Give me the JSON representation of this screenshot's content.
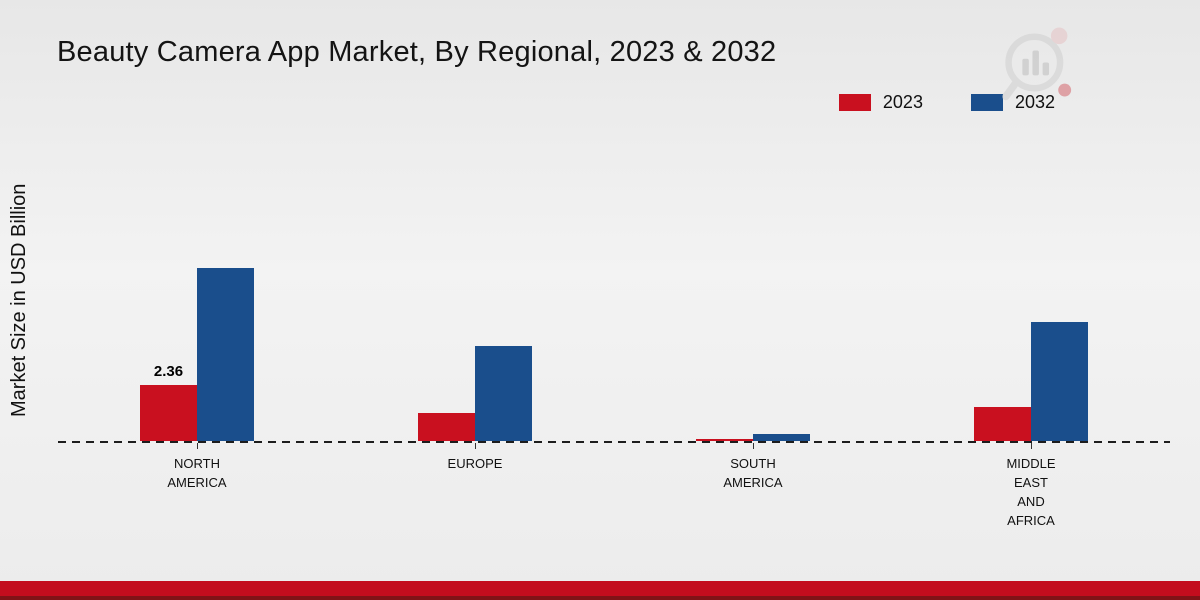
{
  "title": "Beauty Camera App Market, By Regional, 2023 & 2032",
  "ylabel": "Market Size in USD Billion",
  "legend": [
    {
      "label": "2023",
      "color": "#c9101f"
    },
    {
      "label": "2032",
      "color": "#1a4e8c"
    }
  ],
  "colors": {
    "accent_red": "#c9101f",
    "accent_blue": "#1a4e8c",
    "footer_red": "#c30d1e",
    "footer_dark_red": "#801317",
    "background": "#efefef"
  },
  "chart_data": {
    "type": "bar",
    "categories": [
      "NORTH AMERICA",
      "EUROPE",
      "SOUTH AMERICA",
      "MIDDLE EAST AND AFRICA"
    ],
    "category_lines": [
      [
        "NORTH",
        "AMERICA"
      ],
      [
        "EUROPE"
      ],
      [
        "SOUTH",
        "AMERICA"
      ],
      [
        "MIDDLE",
        "EAST",
        "AND",
        "AFRICA"
      ]
    ],
    "series": [
      {
        "name": "2023",
        "color": "#c9101f",
        "values": [
          2.36,
          1.2,
          0.08,
          1.45
        ],
        "labels": [
          "2.36",
          "",
          "",
          ""
        ]
      },
      {
        "name": "2032",
        "color": "#1a4e8c",
        "values": [
          7.3,
          4.0,
          0.3,
          5.0
        ],
        "labels": [
          "",
          "",
          "",
          ""
        ]
      }
    ],
    "title": "Beauty Camera App Market, By Regional, 2023 & 2032",
    "xlabel": "",
    "ylabel": "Market Size in USD Billion",
    "ylim": [
      0,
      8
    ],
    "grid": false,
    "legend_position": "top-right",
    "baseline_style": "dashed"
  }
}
